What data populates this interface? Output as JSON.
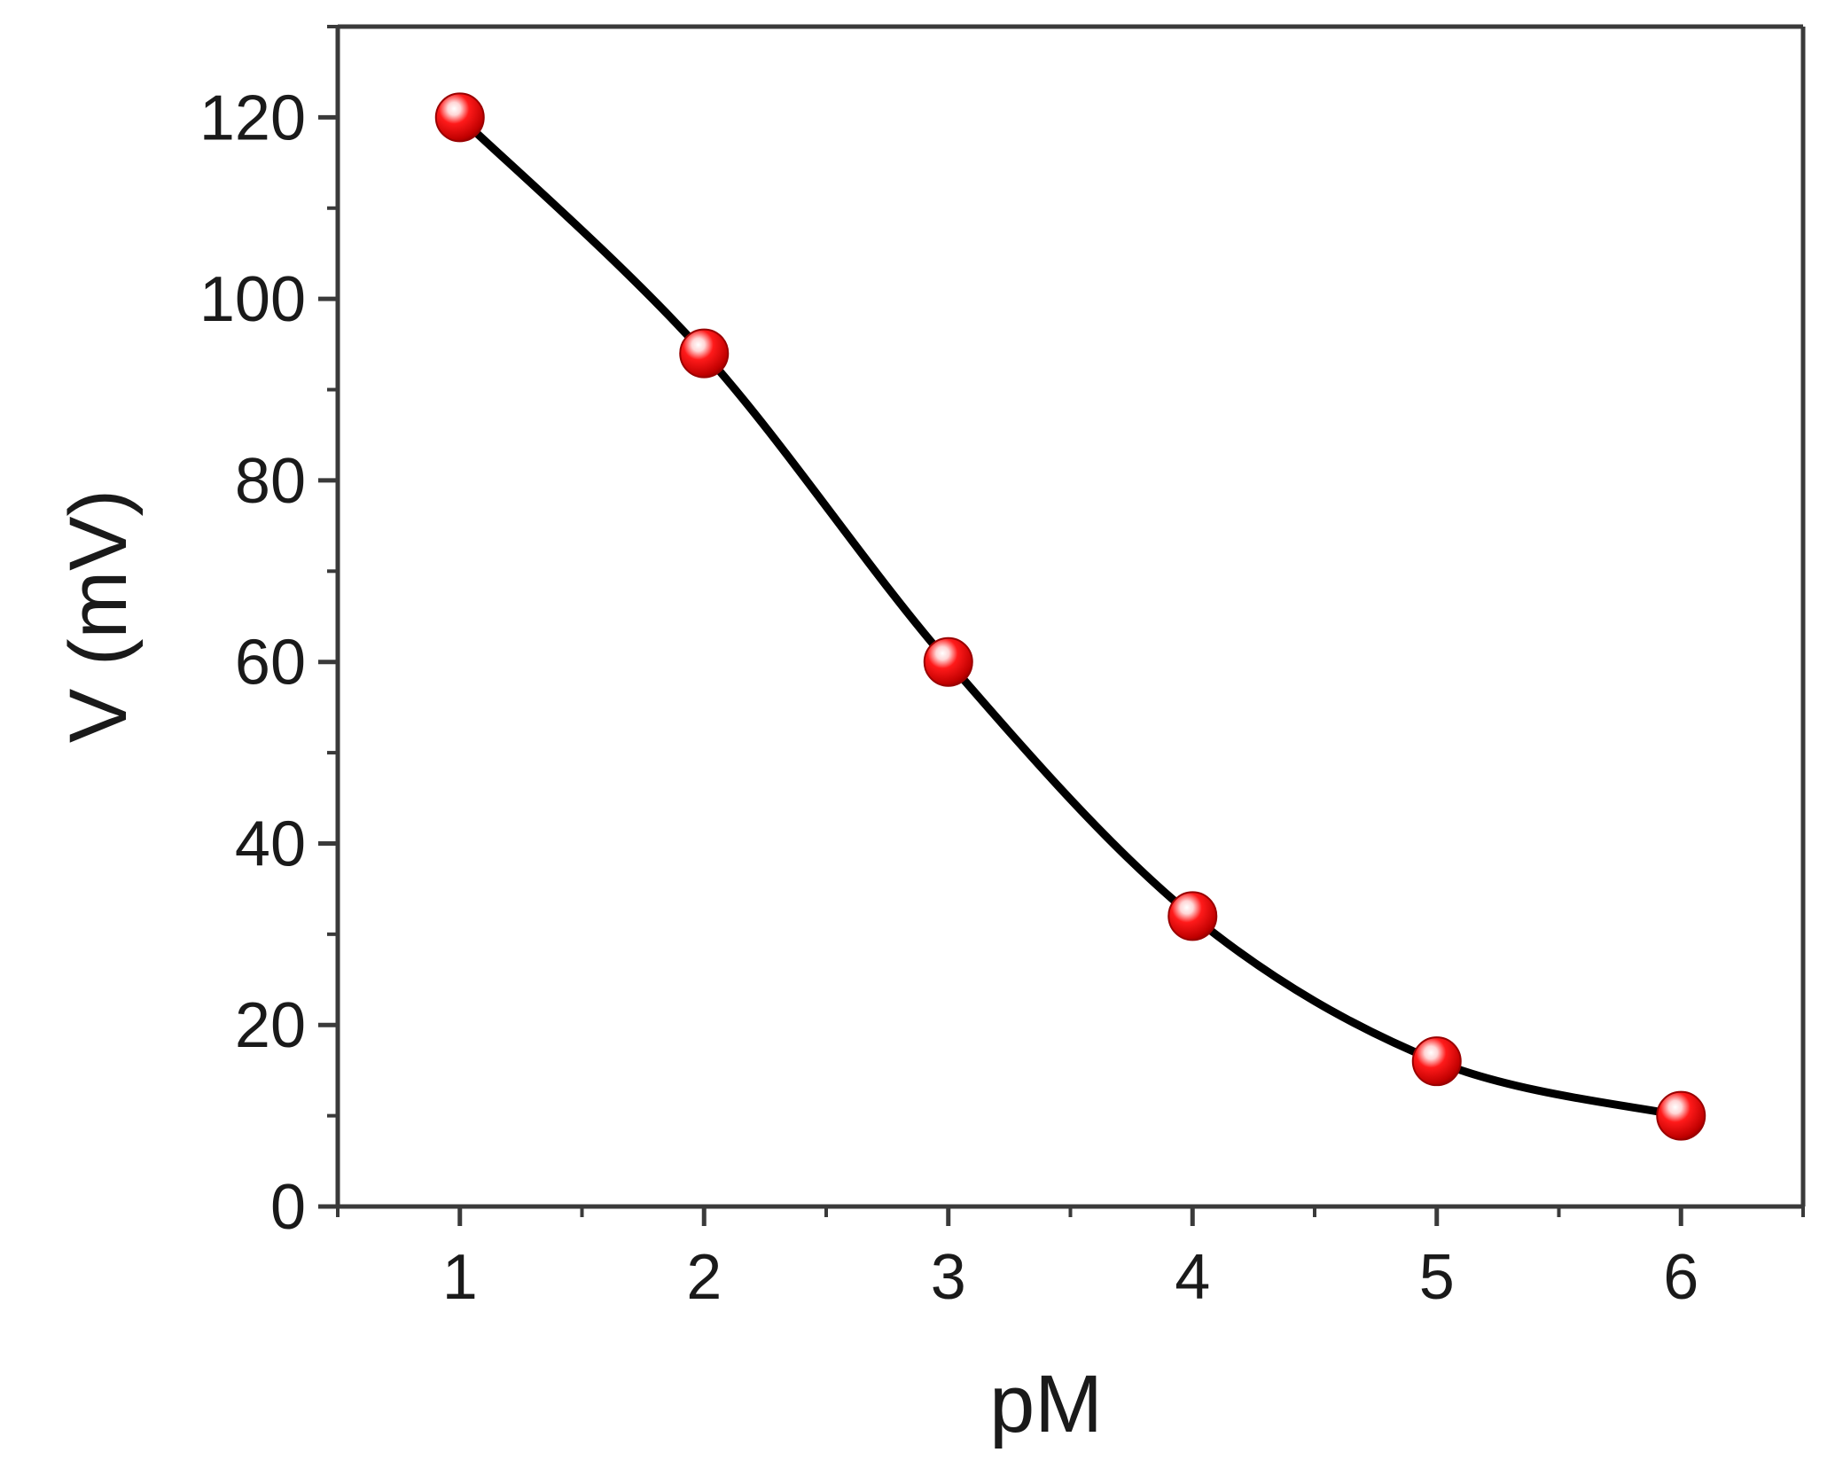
{
  "chart_data": {
    "type": "line",
    "title": "",
    "xlabel": "pM",
    "ylabel": "V (mV)",
    "x": [
      1,
      2,
      3,
      4,
      5,
      6
    ],
    "series": [
      {
        "values": [
          120,
          94,
          60,
          32,
          16,
          10
        ]
      }
    ],
    "xlim": [
      0.5,
      6.5
    ],
    "ylim": [
      0,
      130
    ],
    "xticks": [
      1,
      2,
      3,
      4,
      5,
      6
    ],
    "xtick_labels": [
      "1",
      "2",
      "3",
      "4",
      "5",
      "6"
    ],
    "xminor_ticks": [
      0.5,
      1.5,
      2.5,
      3.5,
      4.5,
      5.5,
      6.5
    ],
    "yticks": [
      0,
      20,
      40,
      60,
      80,
      100,
      120
    ],
    "ytick_labels": [
      "0",
      "20",
      "40",
      "60",
      "80",
      "100",
      "120"
    ],
    "yminor_ticks": [
      10,
      30,
      50,
      70,
      90,
      110,
      130
    ],
    "grid": false,
    "legend": "none",
    "line_color": "#000000",
    "marker_color": "#e00000",
    "marker_highlight": "#ffffff"
  }
}
